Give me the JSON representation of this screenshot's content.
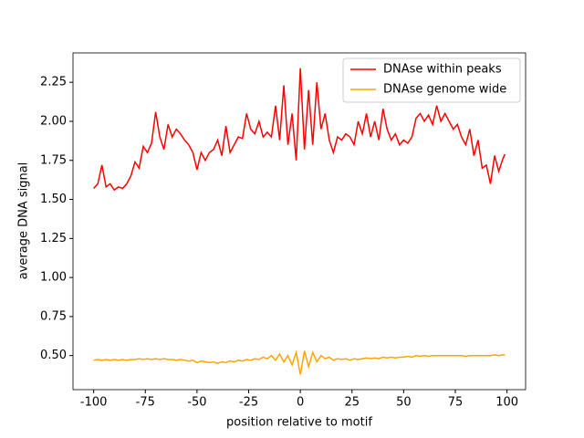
{
  "chart_data": {
    "type": "line",
    "x_label": "position relative to motif",
    "y_label": "average DNA signal",
    "x": [
      -100,
      -98,
      -96,
      -94,
      -92,
      -90,
      -88,
      -86,
      -84,
      -82,
      -80,
      -78,
      -76,
      -74,
      -72,
      -70,
      -68,
      -66,
      -64,
      -62,
      -60,
      -58,
      -56,
      -54,
      -52,
      -50,
      -48,
      -46,
      -44,
      -42,
      -40,
      -38,
      -36,
      -34,
      -32,
      -30,
      -28,
      -26,
      -24,
      -22,
      -20,
      -18,
      -16,
      -14,
      -12,
      -10,
      -8,
      -6,
      -4,
      -2,
      0,
      2,
      4,
      6,
      8,
      10,
      12,
      14,
      16,
      18,
      20,
      22,
      24,
      26,
      28,
      30,
      32,
      34,
      36,
      38,
      40,
      42,
      44,
      46,
      48,
      50,
      52,
      54,
      56,
      58,
      60,
      62,
      64,
      66,
      68,
      70,
      72,
      74,
      76,
      78,
      80,
      82,
      84,
      86,
      88,
      90,
      92,
      94,
      96,
      98,
      99
    ],
    "series": [
      {
        "name": "DNAse within peaks",
        "color": "#ff0000",
        "values": [
          1.57,
          1.6,
          1.72,
          1.58,
          1.6,
          1.56,
          1.58,
          1.57,
          1.6,
          1.65,
          1.74,
          1.7,
          1.84,
          1.8,
          1.86,
          2.06,
          1.9,
          1.82,
          1.98,
          1.9,
          1.95,
          1.92,
          1.88,
          1.85,
          1.8,
          1.69,
          1.8,
          1.75,
          1.8,
          1.82,
          1.88,
          1.78,
          1.97,
          1.8,
          1.85,
          1.9,
          1.89,
          2.05,
          1.95,
          1.92,
          2.0,
          1.9,
          1.93,
          1.9,
          2.1,
          1.88,
          2.23,
          1.85,
          2.05,
          1.75,
          2.34,
          1.82,
          2.2,
          1.85,
          2.25,
          1.95,
          2.05,
          1.88,
          1.8,
          1.9,
          1.88,
          1.92,
          1.9,
          1.85,
          2.0,
          1.92,
          2.05,
          1.9,
          2.0,
          1.88,
          2.08,
          1.95,
          1.88,
          1.92,
          1.85,
          1.88,
          1.86,
          1.9,
          2.02,
          2.05,
          2.0,
          2.04,
          1.98,
          2.1,
          2.0,
          2.05,
          2.0,
          1.95,
          1.98,
          1.9,
          1.85,
          1.95,
          1.78,
          1.88,
          1.7,
          1.72,
          1.6,
          1.78,
          1.68,
          1.76,
          1.79
        ]
      },
      {
        "name": "DNAse genome wide",
        "color": "#ffa500",
        "values": [
          0.47,
          0.475,
          0.47,
          0.475,
          0.47,
          0.475,
          0.47,
          0.475,
          0.47,
          0.475,
          0.475,
          0.48,
          0.475,
          0.48,
          0.475,
          0.48,
          0.475,
          0.48,
          0.475,
          0.475,
          0.47,
          0.475,
          0.47,
          0.465,
          0.47,
          0.455,
          0.465,
          0.46,
          0.455,
          0.46,
          0.45,
          0.46,
          0.455,
          0.465,
          0.46,
          0.47,
          0.465,
          0.475,
          0.47,
          0.48,
          0.475,
          0.49,
          0.48,
          0.5,
          0.47,
          0.51,
          0.46,
          0.5,
          0.44,
          0.52,
          0.38,
          0.53,
          0.43,
          0.52,
          0.46,
          0.5,
          0.48,
          0.49,
          0.47,
          0.48,
          0.475,
          0.48,
          0.47,
          0.48,
          0.475,
          0.48,
          0.485,
          0.48,
          0.485,
          0.48,
          0.49,
          0.485,
          0.49,
          0.485,
          0.49,
          0.49,
          0.495,
          0.49,
          0.5,
          0.495,
          0.5,
          0.495,
          0.5,
          0.5,
          0.5,
          0.5,
          0.5,
          0.5,
          0.5,
          0.5,
          0.495,
          0.5,
          0.5,
          0.5,
          0.5,
          0.5,
          0.5,
          0.505,
          0.5,
          0.505,
          0.505
        ]
      }
    ],
    "xlim": [
      -110,
      109
    ],
    "ylim": [
      0.282,
      2.438
    ],
    "xticks": [
      -100,
      -75,
      -50,
      -25,
      0,
      25,
      50,
      75,
      100
    ],
    "yticks": [
      {
        "value": 0.5,
        "label": "0.50"
      },
      {
        "value": 0.75,
        "label": "0.75"
      },
      {
        "value": 1.0,
        "label": "1.00"
      },
      {
        "value": 1.25,
        "label": "1.25"
      },
      {
        "value": 1.5,
        "label": "1.50"
      },
      {
        "value": 1.75,
        "label": "1.75"
      },
      {
        "value": 2.0,
        "label": "2.00"
      },
      {
        "value": 2.25,
        "label": "2.25"
      }
    ],
    "legend": "upper right"
  }
}
